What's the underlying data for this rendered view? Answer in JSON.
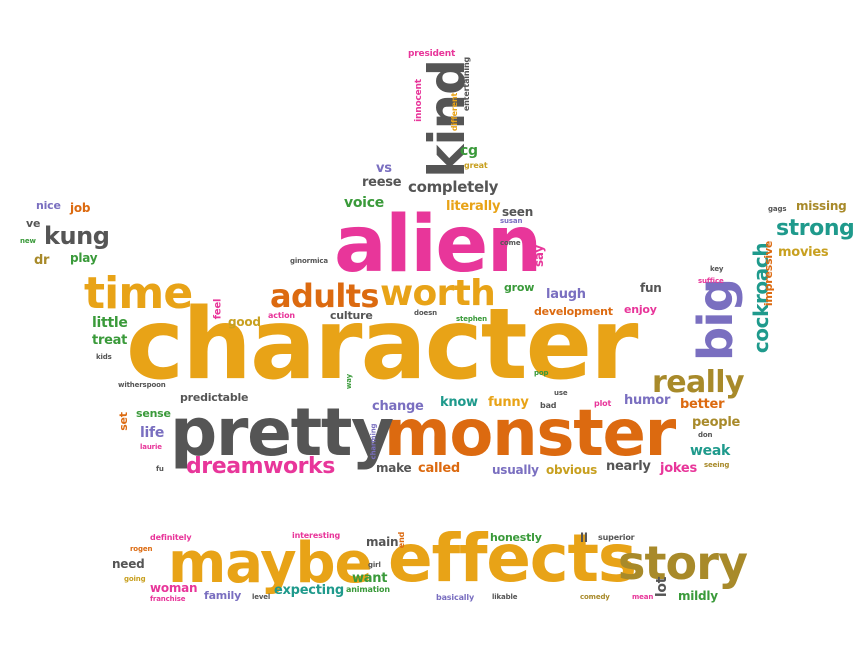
{
  "colors": {
    "orange": "#e8a317",
    "pink": "#e8369a",
    "purple": "#7a6fc0",
    "green": "#3a9a3a",
    "gray": "#555555",
    "dark_orange": "#dc6a10",
    "olive": "#a88a2a",
    "teal": "#1f9a8c",
    "mustard": "#c8a020"
  },
  "words": [
    {
      "text": "character",
      "color": "#e8a317"
    },
    {
      "text": "alien",
      "color": "#e8369a"
    },
    {
      "text": "monster",
      "color": "#dc6a10"
    },
    {
      "text": "pretty",
      "color": "#555555"
    },
    {
      "text": "effects",
      "color": "#e8a317"
    },
    {
      "text": "maybe",
      "color": "#e8a317"
    },
    {
      "text": "story",
      "color": "#a88a2a"
    },
    {
      "text": "kind",
      "color": "#555555"
    },
    {
      "text": "worth",
      "color": "#e8a317"
    },
    {
      "text": "adults",
      "color": "#dc6a10"
    },
    {
      "text": "time",
      "color": "#e8a317"
    },
    {
      "text": "big",
      "color": "#7a6fc0"
    },
    {
      "text": "really",
      "color": "#a88a2a"
    },
    {
      "text": "dreamworks",
      "color": "#e8369a"
    },
    {
      "text": "kung",
      "color": "#555555"
    },
    {
      "text": "strong",
      "color": "#1f9a8c"
    },
    {
      "text": "cockroach",
      "color": "#1f9a8c"
    },
    {
      "text": "completely",
      "color": "#555555"
    },
    {
      "text": "voice",
      "color": "#3a9a3a"
    },
    {
      "text": "literally",
      "color": "#e8a317"
    },
    {
      "text": "seen",
      "color": "#555555"
    },
    {
      "text": "reese",
      "color": "#555555"
    },
    {
      "text": "vs",
      "color": "#7a6fc0"
    },
    {
      "text": "cg",
      "color": "#3a9a3a"
    },
    {
      "text": "great",
      "color": "#c8a020"
    },
    {
      "text": "innocent",
      "color": "#e8369a"
    },
    {
      "text": "different",
      "color": "#e8a317"
    },
    {
      "text": "entertaining",
      "color": "#555555"
    },
    {
      "text": "president",
      "color": "#e8369a"
    },
    {
      "text": "susan",
      "color": "#7a6fc0"
    },
    {
      "text": "say",
      "color": "#e8369a"
    },
    {
      "text": "grow",
      "color": "#3a9a3a"
    },
    {
      "text": "laugh",
      "color": "#7a6fc0"
    },
    {
      "text": "fun",
      "color": "#555555"
    },
    {
      "text": "enjoy",
      "color": "#e8369a"
    },
    {
      "text": "development",
      "color": "#dc6a10"
    },
    {
      "text": "doesn",
      "color": "#555555"
    },
    {
      "text": "stephen",
      "color": "#3a9a3a"
    },
    {
      "text": "culture",
      "color": "#555555"
    },
    {
      "text": "action",
      "color": "#e8369a"
    },
    {
      "text": "good",
      "color": "#c8a020"
    },
    {
      "text": "feel",
      "color": "#e8369a"
    },
    {
      "text": "ginormica",
      "color": "#555555"
    },
    {
      "text": "little",
      "color": "#3a9a3a"
    },
    {
      "text": "treat",
      "color": "#3a9a3a"
    },
    {
      "text": "kids",
      "color": "#555555"
    },
    {
      "text": "nice",
      "color": "#7a6fc0"
    },
    {
      "text": "job",
      "color": "#dc6a10"
    },
    {
      "text": "ve",
      "color": "#555555"
    },
    {
      "text": "new",
      "color": "#3a9a3a"
    },
    {
      "text": "dr",
      "color": "#a88a2a"
    },
    {
      "text": "play",
      "color": "#3a9a3a"
    },
    {
      "text": "gags",
      "color": "#555555"
    },
    {
      "text": "missing",
      "color": "#a88a2a"
    },
    {
      "text": "movies",
      "color": "#c8a020"
    },
    {
      "text": "impressive",
      "color": "#dc6a10"
    },
    {
      "text": "key",
      "color": "#555555"
    },
    {
      "text": "suffice",
      "color": "#e8369a"
    },
    {
      "text": "witherspoon",
      "color": "#555555"
    },
    {
      "text": "predictable",
      "color": "#555555"
    },
    {
      "text": "set",
      "color": "#dc6a10"
    },
    {
      "text": "sense",
      "color": "#3a9a3a"
    },
    {
      "text": "life",
      "color": "#7a6fc0"
    },
    {
      "text": "laurie",
      "color": "#e8369a"
    },
    {
      "text": "fu",
      "color": "#555555"
    },
    {
      "text": "way",
      "color": "#3a9a3a"
    },
    {
      "text": "charming",
      "color": "#7a6fc0"
    },
    {
      "text": "change",
      "color": "#7a6fc0"
    },
    {
      "text": "know",
      "color": "#1f9a8c"
    },
    {
      "text": "funny",
      "color": "#e8a317"
    },
    {
      "text": "pop",
      "color": "#3a9a3a"
    },
    {
      "text": "use",
      "color": "#555555"
    },
    {
      "text": "bad",
      "color": "#555555"
    },
    {
      "text": "plot",
      "color": "#e8369a"
    },
    {
      "text": "humor",
      "color": "#7a6fc0"
    },
    {
      "text": "better",
      "color": "#dc6a10"
    },
    {
      "text": "people",
      "color": "#a88a2a"
    },
    {
      "text": "don",
      "color": "#555555"
    },
    {
      "text": "weak",
      "color": "#1f9a8c"
    },
    {
      "text": "seeing",
      "color": "#a88a2a"
    },
    {
      "text": "jokes",
      "color": "#e8369a"
    },
    {
      "text": "nearly",
      "color": "#555555"
    },
    {
      "text": "obvious",
      "color": "#c8a020"
    },
    {
      "text": "usually",
      "color": "#7a6fc0"
    },
    {
      "text": "called",
      "color": "#dc6a10"
    },
    {
      "text": "make",
      "color": "#555555"
    },
    {
      "text": "come",
      "color": "#555555"
    },
    {
      "text": "definitely",
      "color": "#e8369a"
    },
    {
      "text": "rogen",
      "color": "#dc6a10"
    },
    {
      "text": "need",
      "color": "#555555"
    },
    {
      "text": "going",
      "color": "#c8a020"
    },
    {
      "text": "woman",
      "color": "#e8369a"
    },
    {
      "text": "franchise",
      "color": "#e8369a"
    },
    {
      "text": "family",
      "color": "#7a6fc0"
    },
    {
      "text": "level",
      "color": "#555555"
    },
    {
      "text": "interesting",
      "color": "#e8369a"
    },
    {
      "text": "expecting",
      "color": "#1f9a8c"
    },
    {
      "text": "animation",
      "color": "#3a9a3a"
    },
    {
      "text": "main",
      "color": "#555555"
    },
    {
      "text": "end",
      "color": "#dc6a10"
    },
    {
      "text": "girl",
      "color": "#555555"
    },
    {
      "text": "want",
      "color": "#3a9a3a"
    },
    {
      "text": "honestly",
      "color": "#3a9a3a"
    },
    {
      "text": "basically",
      "color": "#7a6fc0"
    },
    {
      "text": "likable",
      "color": "#555555"
    },
    {
      "text": "ll",
      "color": "#555555"
    },
    {
      "text": "superior",
      "color": "#555555"
    },
    {
      "text": "comedy",
      "color": "#a88a2a"
    },
    {
      "text": "lot",
      "color": "#555555"
    },
    {
      "text": "mean",
      "color": "#e8369a"
    },
    {
      "text": "mildly",
      "color": "#3a9a3a"
    }
  ]
}
